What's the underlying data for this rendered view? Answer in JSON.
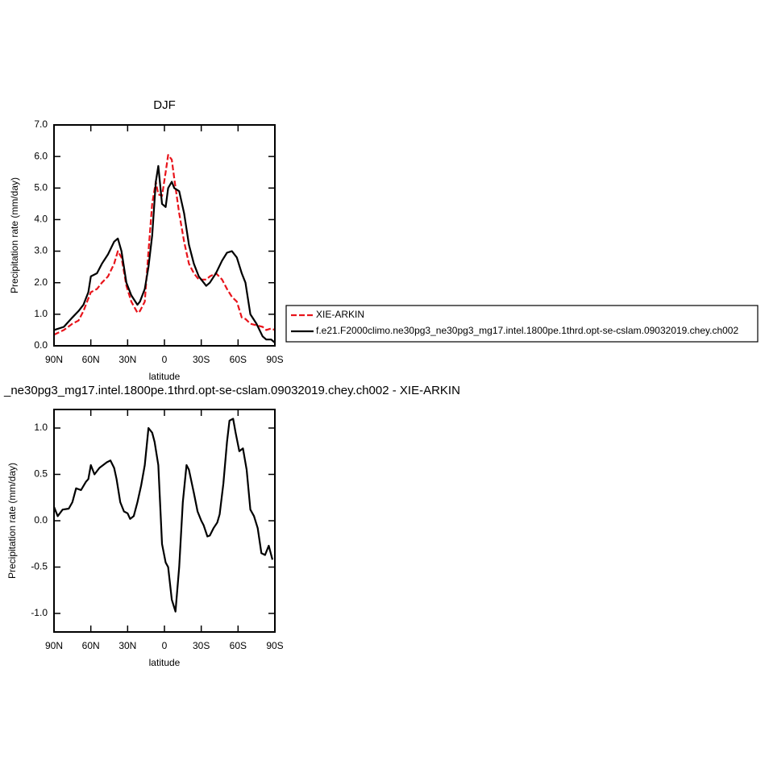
{
  "chart_data": [
    {
      "type": "line",
      "title": "DJF",
      "xlabel": "latitude",
      "ylabel": "Precipitation rate (mm/day)",
      "x": [
        90,
        82,
        75,
        70,
        66,
        62,
        60,
        55,
        51,
        46,
        41,
        38,
        35,
        31,
        27,
        22,
        20,
        16,
        13,
        10,
        7,
        5,
        2,
        -1,
        -3,
        -6,
        -8,
        -12,
        -16,
        -20,
        -24,
        -28,
        -34,
        -37,
        -42,
        -47,
        -51,
        -55,
        -59,
        -63,
        -66,
        -70,
        -75,
        -80,
        -83,
        -87,
        -90
      ],
      "series": [
        {
          "name": "XIE-ARKIN",
          "color": "#e8141b",
          "line_style": "dashed",
          "values": [
            0.35,
            0.5,
            0.7,
            0.8,
            1.1,
            1.5,
            1.7,
            1.8,
            2.0,
            2.2,
            2.6,
            3.0,
            2.8,
            1.9,
            1.4,
            1.05,
            1.1,
            1.4,
            3.0,
            4.5,
            5.2,
            4.8,
            4.75,
            5.5,
            6.05,
            5.9,
            5.3,
            4.2,
            3.3,
            2.6,
            2.3,
            2.1,
            2.1,
            2.2,
            2.3,
            2.1,
            1.8,
            1.55,
            1.4,
            0.9,
            0.85,
            0.7,
            0.65,
            0.6,
            0.5,
            0.55,
            0.5
          ]
        },
        {
          "name": "f.e21.F2000climo.ne30pg3_ne30pg3_mg17.intel.1800pe.1thrd.opt-se-cslam.09032019.chey.ch002",
          "color": "#000000",
          "line_style": "solid",
          "values": [
            0.5,
            0.6,
            0.9,
            1.1,
            1.3,
            1.7,
            2.2,
            2.3,
            2.6,
            2.9,
            3.3,
            3.4,
            3.0,
            2.0,
            1.6,
            1.3,
            1.4,
            1.8,
            2.5,
            3.5,
            5.2,
            5.7,
            4.5,
            4.4,
            5.0,
            5.2,
            5.0,
            4.9,
            4.2,
            3.2,
            2.6,
            2.2,
            1.9,
            2.0,
            2.3,
            2.7,
            2.95,
            3.0,
            2.8,
            2.3,
            2.0,
            1.0,
            0.7,
            0.3,
            0.2,
            0.2,
            0.1
          ]
        }
      ],
      "xlim": [
        90,
        -90
      ],
      "xticks": [
        {
          "value": 90,
          "label": "90N"
        },
        {
          "value": 60,
          "label": "60N"
        },
        {
          "value": 30,
          "label": "30N"
        },
        0,
        {
          "value": -30,
          "label": "30S"
        },
        {
          "value": -60,
          "label": "60S"
        },
        {
          "value": -90,
          "label": "90S"
        }
      ],
      "ylim": [
        0,
        7
      ],
      "yticks": [
        {
          "value": 0,
          "label": "0.0"
        },
        {
          "value": 1,
          "label": "1.0"
        },
        {
          "value": 2,
          "label": "2.0"
        },
        {
          "value": 3,
          "label": "3.0"
        },
        {
          "value": 4,
          "label": "4.0"
        },
        {
          "value": 5,
          "label": "5.0"
        },
        {
          "value": 6,
          "label": "6.0"
        },
        {
          "value": 7,
          "label": "7.0"
        }
      ],
      "legend": "outside-right"
    },
    {
      "type": "line",
      "title": "_ne30pg3_mg17.intel.1800pe.1thrd.opt-se-cslam.09032019.chey.ch002 - XIE-ARKIN",
      "xlabel": "latitude",
      "ylabel": "Precipitation rate (mm/day)",
      "x": [
        90,
        87,
        83,
        78,
        75,
        72,
        68,
        64,
        62,
        60,
        57,
        53,
        50,
        47,
        44,
        41,
        39,
        36,
        33,
        30,
        28,
        25,
        22,
        19,
        16,
        13,
        10,
        8,
        5,
        2,
        -1,
        -3,
        -6,
        -9,
        -12,
        -15,
        -18,
        -20,
        -24,
        -27,
        -30,
        -32,
        -35,
        -37,
        -40,
        -43,
        -45,
        -48,
        -51,
        -53,
        -56,
        -58,
        -61,
        -64,
        -67,
        -70,
        -73,
        -76,
        -79,
        -82,
        -85,
        -88
      ],
      "values": [
        0.15,
        0.05,
        0.12,
        0.13,
        0.2,
        0.35,
        0.33,
        0.42,
        0.45,
        0.6,
        0.5,
        0.57,
        0.6,
        0.63,
        0.65,
        0.57,
        0.45,
        0.2,
        0.1,
        0.08,
        0.02,
        0.05,
        0.2,
        0.38,
        0.6,
        1.0,
        0.95,
        0.85,
        0.6,
        -0.25,
        -0.45,
        -0.5,
        -0.85,
        -0.98,
        -0.5,
        0.2,
        0.6,
        0.55,
        0.3,
        0.1,
        0.0,
        -0.05,
        -0.17,
        -0.16,
        -0.08,
        -0.02,
        0.07,
        0.4,
        0.85,
        1.08,
        1.1,
        0.95,
        0.75,
        0.78,
        0.55,
        0.12,
        0.05,
        -0.08,
        -0.35,
        -0.37,
        -0.27,
        -0.42
      ],
      "color": "#000000",
      "xlim": [
        90,
        -90
      ],
      "xticks": [
        {
          "value": 90,
          "label": "90N"
        },
        {
          "value": 60,
          "label": "60N"
        },
        {
          "value": 30,
          "label": "30N"
        },
        0,
        {
          "value": -30,
          "label": "30S"
        },
        {
          "value": -60,
          "label": "60S"
        },
        {
          "value": -90,
          "label": "90S"
        }
      ],
      "ylim": [
        -1.2,
        1.2
      ],
      "yticks": [
        {
          "value": -1,
          "label": "-1.0"
        },
        {
          "value": -0.5,
          "label": "-0.5"
        },
        {
          "value": 0,
          "label": "0.0"
        },
        {
          "value": 0.5,
          "label": "0.5"
        },
        {
          "value": 1,
          "label": "1.0"
        }
      ]
    }
  ]
}
